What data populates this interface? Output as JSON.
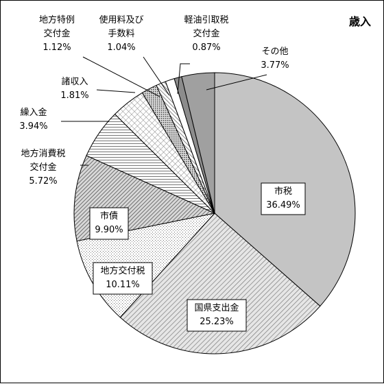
{
  "chart_data": {
    "type": "pie",
    "title": "歳入",
    "unit": "%",
    "slices": [
      {
        "name": "市税",
        "label_lines": [
          "市税"
        ],
        "value": 36.49,
        "value_label": "36.49%",
        "pattern": "solid-light"
      },
      {
        "name": "国県支出金",
        "label_lines": [
          "国県支出金"
        ],
        "value": 25.23,
        "value_label": "25.23%",
        "pattern": "diag-fine"
      },
      {
        "name": "地方交付税",
        "label_lines": [
          "地方交付税"
        ],
        "value": 10.11,
        "value_label": "10.11%",
        "pattern": "dots"
      },
      {
        "name": "市債",
        "label_lines": [
          "市債"
        ],
        "value": 9.9,
        "value_label": "9.90%",
        "pattern": "diag-dense"
      },
      {
        "name": "地方消費税交付金",
        "label_lines": [
          "地方消費税",
          "交付金"
        ],
        "value": 5.72,
        "value_label": "5.72%",
        "pattern": "horizontal"
      },
      {
        "name": "繰入金",
        "label_lines": [
          "繰入金"
        ],
        "value": 3.94,
        "value_label": "3.94%",
        "pattern": "cross"
      },
      {
        "name": "諸収入",
        "label_lines": [
          "諸収入"
        ],
        "value": 1.81,
        "value_label": "1.81%",
        "pattern": "dots-dense"
      },
      {
        "name": "地方特例交付金",
        "label_lines": [
          "地方特例",
          "交付金"
        ],
        "value": 1.12,
        "value_label": "1.12%",
        "pattern": "diag-back"
      },
      {
        "name": "使用料及び手数料",
        "label_lines": [
          "使用料及び",
          "手数料"
        ],
        "value": 1.04,
        "value_label": "1.04%",
        "pattern": "white"
      },
      {
        "name": "軽油引取税交付金",
        "label_lines": [
          "軽油引取税",
          "交付金"
        ],
        "value": 0.87,
        "value_label": "0.87%",
        "pattern": "solid-mid"
      },
      {
        "name": "その他",
        "label_lines": [
          "その他"
        ],
        "value": 3.77,
        "value_label": "3.77%",
        "pattern": "solid-dark"
      }
    ],
    "start": "12 o'clock",
    "direction": "clockwise",
    "legend": "none",
    "label_style": "inside labels in boxes for large slices, outside labels with leader lines for small slices",
    "colors": {
      "solid-light": "#c4c4c4",
      "solid-mid": "#8c8c8c",
      "solid-dark": "#a0a0a0",
      "stroke": "#000000"
    }
  }
}
